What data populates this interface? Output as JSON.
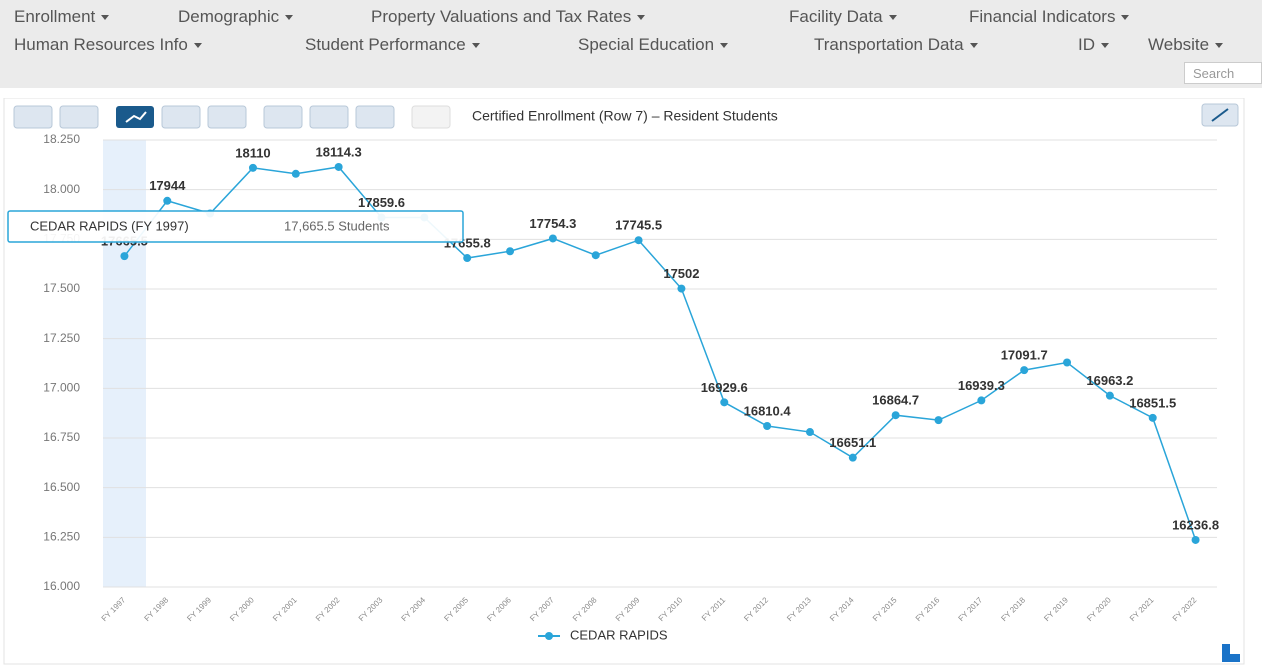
{
  "menu": {
    "items": [
      "Enrollment",
      "Demographic",
      "Property Valuations and Tax Rates",
      "Facility Data",
      "Financial Indicators",
      "Human Resources Info",
      "Student Performance",
      "Special Education",
      "Transportation Data",
      "ID",
      "Website"
    ],
    "search_placeholder": "Search"
  },
  "tooltip": {
    "title": "CEDAR RAPIDS (FY 1997)",
    "text": "17,665.5 Students"
  },
  "chart_data": {
    "type": "line",
    "title": "Certified Enrollment (Row 7) – Resident Students",
    "categories": [
      "FY 1997",
      "FY 1998",
      "FY 1999",
      "FY 2000",
      "FY 2001",
      "FY 2002",
      "FY 2003",
      "FY 2004",
      "FY 2005",
      "FY 2006",
      "FY 2007",
      "FY 2008",
      "FY 2009",
      "FY 2010",
      "FY 2011",
      "FY 2012",
      "FY 2013",
      "FY 2014",
      "FY 2015",
      "FY 2016",
      "FY 2017",
      "FY 2018",
      "FY 2019",
      "FY 2020",
      "FY 2021",
      "FY 2022"
    ],
    "series": [
      {
        "name": "CEDAR RAPIDS",
        "color": "#2aa5d9",
        "values": [
          17665.5,
          17944,
          17880,
          18110,
          18080,
          18114.3,
          17859.6,
          17860,
          17655.8,
          17690,
          17754.3,
          17670,
          17745.5,
          17502,
          16929.6,
          16810.4,
          16780,
          16651.1,
          16864.7,
          16840,
          16939.3,
          17091.7,
          17130,
          16963.2,
          16851.5,
          16236.8
        ],
        "value_labels": [
          "17665.5",
          "17944",
          null,
          "18110",
          null,
          "18114.3",
          "17859.6",
          null,
          "17655.8",
          null,
          "17754.3",
          null,
          "17745.5",
          "17502",
          "16929.6",
          "16810.4",
          null,
          "16651.1",
          "16864.7",
          null,
          "16939.3",
          "17091.7",
          null,
          "16963.2",
          "16851.5",
          "16236.8"
        ]
      }
    ],
    "ylim": [
      16000,
      18250
    ],
    "yticks": [
      {
        "value": 16000,
        "label": "16.000"
      },
      {
        "value": 16250,
        "label": "16.250"
      },
      {
        "value": 16500,
        "label": "16.500"
      },
      {
        "value": 16750,
        "label": "16.750"
      },
      {
        "value": 17000,
        "label": "17.000"
      },
      {
        "value": 17250,
        "label": "17.250"
      },
      {
        "value": 17500,
        "label": "17.500"
      },
      {
        "value": 17750,
        "label": "17.750"
      },
      {
        "value": 18000,
        "label": "18.000"
      },
      {
        "value": 18250,
        "label": "18.250"
      }
    ],
    "grid": true,
    "legend": "bottom"
  }
}
